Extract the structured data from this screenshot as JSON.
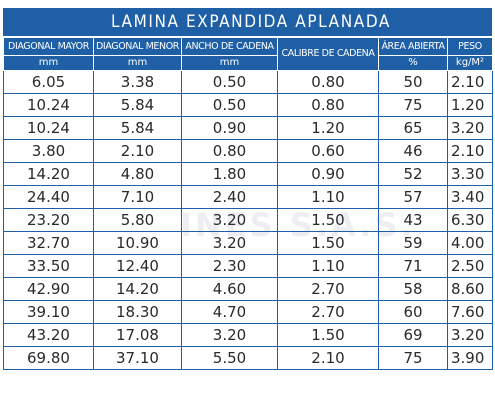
{
  "title": "LAMINA EXPANDIDA APLANADA",
  "headers": [
    {
      "label": "DIAGONAL MAYOR",
      "unit": "mm"
    },
    {
      "label": "DIAGONAL MENOR",
      "unit": "mm"
    },
    {
      "label": "ANCHO DE CADENA",
      "unit": "mm"
    },
    {
      "label": "CALIBRE DE CADENA",
      "unit": ""
    },
    {
      "label": "ÁREA ABIERTA",
      "unit": "%"
    },
    {
      "label": "PESO",
      "unit": "kg/M²"
    }
  ],
  "rows": [
    [
      "6.05",
      "3.38",
      "0.50",
      "0.80",
      "50",
      "2.10"
    ],
    [
      "10.24",
      "5.84",
      "0.50",
      "0.80",
      "75",
      "1.20"
    ],
    [
      "10.24",
      "5.84",
      "0.90",
      "1.20",
      "65",
      "3.20"
    ],
    [
      "3.80",
      "2.10",
      "0.80",
      "0.60",
      "46",
      "2.10"
    ],
    [
      "14.20",
      "4.80",
      "1.80",
      "0.90",
      "52",
      "3.30"
    ],
    [
      "24.40",
      "7.10",
      "2.40",
      "1.10",
      "57",
      "3.40"
    ],
    [
      "23.20",
      "5.80",
      "3.20",
      "1.50",
      "43",
      "6.30"
    ],
    [
      "32.70",
      "10.90",
      "3.20",
      "1.50",
      "59",
      "4.00"
    ],
    [
      "33.50",
      "12.40",
      "2.30",
      "1.10",
      "71",
      "2.50"
    ],
    [
      "42.90",
      "14.20",
      "4.60",
      "2.70",
      "58",
      "8.60"
    ],
    [
      "39.10",
      "18.30",
      "4.70",
      "2.70",
      "60",
      "7.60"
    ],
    [
      "43.20",
      "17.08",
      "3.20",
      "1.50",
      "69",
      "3.20"
    ],
    [
      "69.80",
      "37.10",
      "5.50",
      "2.10",
      "75",
      "3.90"
    ]
  ],
  "watermark": "INES S.A.S.",
  "colors": {
    "header_blue": "#1f5fa6",
    "text": "#2a2a2a"
  }
}
